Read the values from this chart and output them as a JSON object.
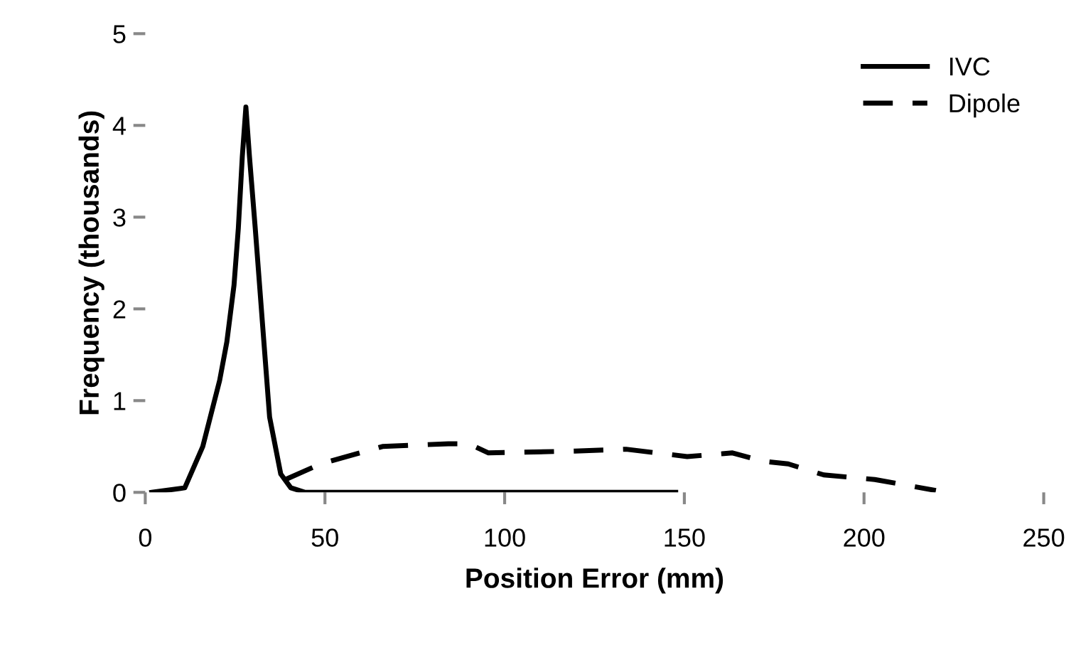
{
  "chart_data": {
    "type": "line",
    "xlabel": "Position Error (mm)",
    "ylabel": "Frequency (thousands)",
    "xlim": [
      0,
      250
    ],
    "xticks": [
      0,
      50,
      100,
      150,
      200,
      250
    ],
    "ylim": [
      0,
      5
    ],
    "yticks": [
      0,
      1,
      2,
      3,
      4,
      5
    ],
    "grid": false,
    "legend": "top right",
    "marker": "none",
    "series": [
      {
        "name": "IVC",
        "color": "#000000",
        "line_style": "solid",
        "x": [
          1.8,
          11,
          16,
          20.7,
          22.7,
          24.7,
          25.9,
          27,
          28,
          29,
          30.6,
          32.6,
          34.6,
          37.7,
          40.5,
          44.5,
          147.6
        ],
        "values": [
          0,
          0.05,
          0.5,
          1.22,
          1.64,
          2.26,
          2.88,
          3.66,
          4.2,
          3.66,
          2.88,
          1.85,
          0.82,
          0.2,
          0.05,
          0,
          0
        ]
      },
      {
        "name": "Dipole",
        "color": "#000000",
        "line_style": "dashed",
        "x": [
          39,
          48.8,
          66,
          84.3,
          90,
          95.5,
          119.6,
          133.8,
          150.8,
          163.4,
          171.8,
          178.9,
          188.8,
          203,
          220
        ],
        "values": [
          0.14,
          0.31,
          0.5,
          0.53,
          0.53,
          0.43,
          0.45,
          0.47,
          0.39,
          0.43,
          0.34,
          0.31,
          0.19,
          0.14,
          0.02
        ]
      }
    ]
  }
}
